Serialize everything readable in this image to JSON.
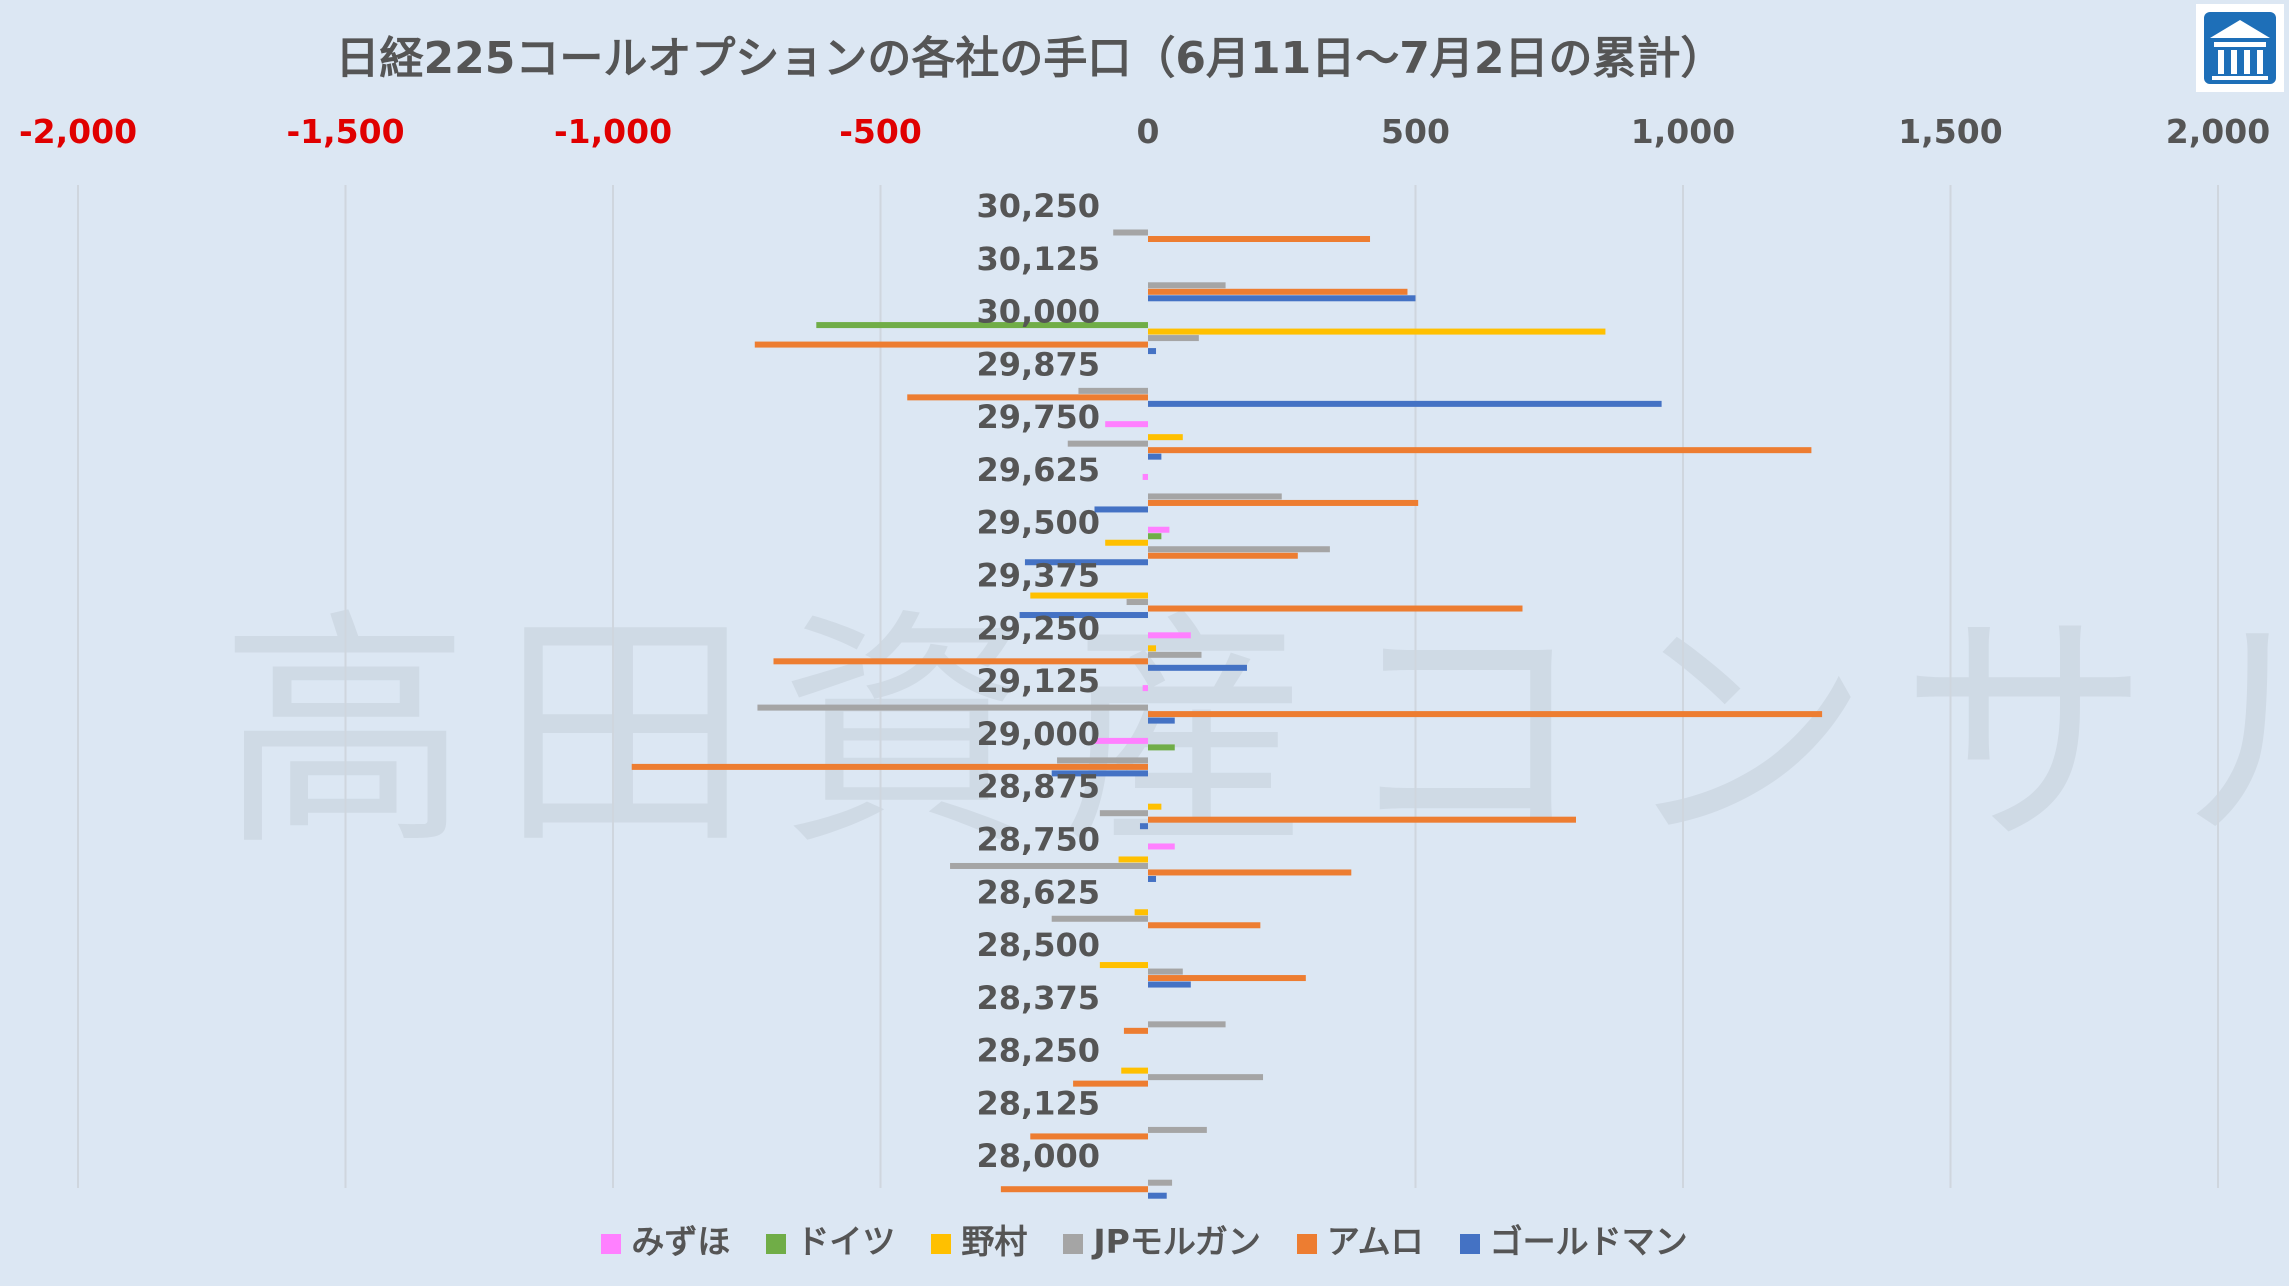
{
  "chart_data": {
    "type": "bar",
    "orientation": "horizontal",
    "title": "日経225コールオプションの各社の手口（6月11日～7月2日の累計）",
    "categories": [
      "30,250",
      "30,125",
      "30,000",
      "29,875",
      "29,750",
      "29,625",
      "29,500",
      "29,375",
      "29,250",
      "29,125",
      "29,000",
      "28,875",
      "28,750",
      "28,625",
      "28,500",
      "28,375",
      "28,250",
      "28,125",
      "28,000"
    ],
    "xlim": [
      -2000,
      2000
    ],
    "xticks": [
      -2000,
      -1500,
      -1000,
      -500,
      0,
      500,
      1000,
      1500,
      2000
    ],
    "xtick_labels": [
      "-2,000",
      "-1,500",
      "-1,000",
      "-500",
      "0",
      "500",
      "1,000",
      "1,500",
      "2,000"
    ],
    "negative_tick_color": "#e00000",
    "grid": "vertical",
    "legend_position": "bottom",
    "series": [
      {
        "name": "みずほ",
        "color": "#ff80ff",
        "values": [
          0,
          0,
          0,
          0,
          -80,
          -10,
          40,
          0,
          80,
          -10,
          -100,
          0,
          50,
          0,
          0,
          0,
          0,
          0,
          0
        ]
      },
      {
        "name": "ドイツ",
        "color": "#70ad47",
        "values": [
          0,
          0,
          -620,
          0,
          0,
          0,
          25,
          0,
          0,
          0,
          50,
          0,
          0,
          0,
          0,
          0,
          0,
          0,
          0
        ]
      },
      {
        "name": "野村",
        "color": "#ffc000",
        "values": [
          0,
          0,
          855,
          0,
          65,
          0,
          -80,
          -220,
          15,
          0,
          0,
          25,
          -55,
          -25,
          -90,
          0,
          -50,
          0,
          0
        ]
      },
      {
        "name": "JPモルガン",
        "color": "#a5a5a5",
        "values": [
          -65,
          145,
          95,
          -130,
          -150,
          250,
          340,
          -40,
          100,
          -730,
          -170,
          -90,
          -370,
          -180,
          65,
          145,
          215,
          110,
          45
        ]
      },
      {
        "name": "アムロ",
        "color": "#ed7d31",
        "values": [
          415,
          485,
          -735,
          -450,
          1240,
          505,
          280,
          700,
          -700,
          1260,
          -965,
          800,
          380,
          210,
          295,
          -45,
          -140,
          -220,
          -275
        ]
      },
      {
        "name": "ゴールドマン",
        "color": "#4472c4",
        "values": [
          0,
          500,
          15,
          960,
          25,
          -100,
          -230,
          -240,
          185,
          50,
          -180,
          -15,
          15,
          0,
          80,
          0,
          0,
          0,
          35
        ]
      }
    ]
  },
  "watermark": "高田資産コンサル",
  "logo_icon": "building-logo-icon"
}
